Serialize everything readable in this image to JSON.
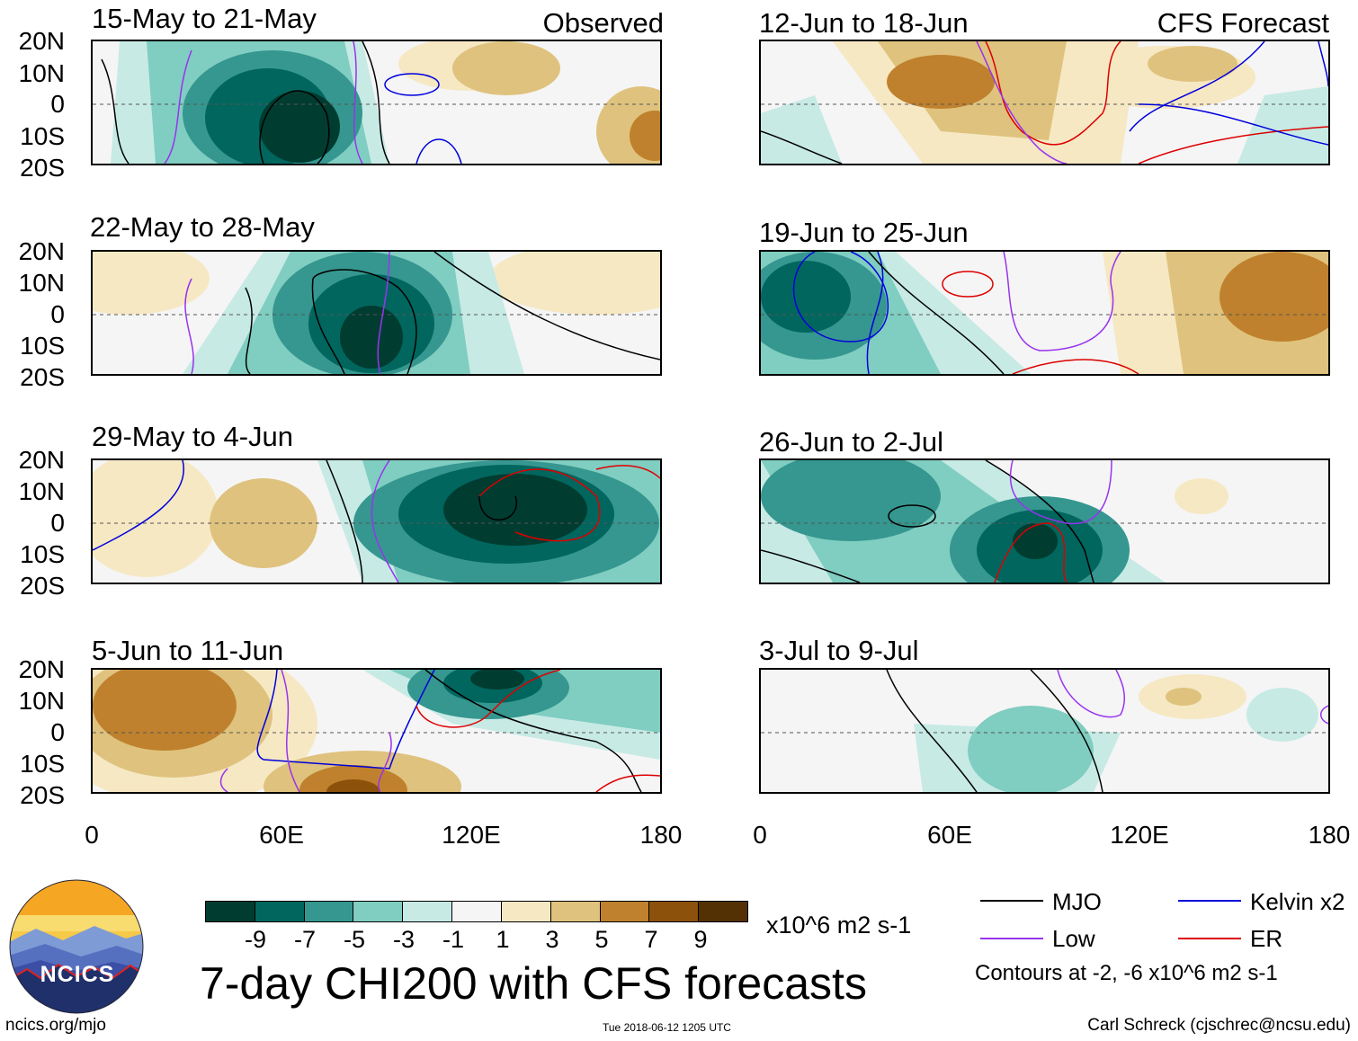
{
  "header": {
    "left_label": "Observed",
    "right_label": "CFS Forecast"
  },
  "panels": {
    "obs1": {
      "title": "15-May to 21-May"
    },
    "obs2": {
      "title": "22-May to 28-May"
    },
    "obs3": {
      "title": "29-May to 4-Jun"
    },
    "obs4": {
      "title": "5-Jun to 11-Jun"
    },
    "fc1": {
      "title": "12-Jun to 18-Jun"
    },
    "fc2": {
      "title": "19-Jun to 25-Jun"
    },
    "fc3": {
      "title": "26-Jun to 2-Jul"
    },
    "fc4": {
      "title": "3-Jul to 9-Jul"
    }
  },
  "lat_labels": [
    "20N",
    "10N",
    "0",
    "10S",
    "20S"
  ],
  "lon_labels": [
    "0",
    "60E",
    "120E",
    "180"
  ],
  "colorbar": {
    "colors": [
      "#013c30",
      "#01665e",
      "#35978f",
      "#80cdc1",
      "#c7eae5",
      "#f5f5f5",
      "#f6e8c3",
      "#dfc27d",
      "#bf812d",
      "#8c510a",
      "#543005"
    ],
    "ticks": [
      "-9",
      "-7",
      "-5",
      "-3",
      "-1",
      "1",
      "3",
      "5",
      "7",
      "9"
    ],
    "units": "x10^6 m2 s-1"
  },
  "title": "7-day CHI200 with CFS forecasts",
  "legend": {
    "mjo": {
      "label": "MJO",
      "color": "#000000"
    },
    "kelvin": {
      "label": "Kelvin x2",
      "color": "#0000dd"
    },
    "low": {
      "label": "Low",
      "color": "#9933ee"
    },
    "er": {
      "label": "ER",
      "color": "#dd0000"
    },
    "note": "Contours at -2, -6 x10^6 m2 s-1"
  },
  "logo": {
    "text": "NCICS"
  },
  "footer": {
    "site": "ncics.org/mjo",
    "timestamp": "Tue 2018-06-12 1205 UTC",
    "credit": "Carl Schreck (cjschrec@ncsu.edu)"
  }
}
